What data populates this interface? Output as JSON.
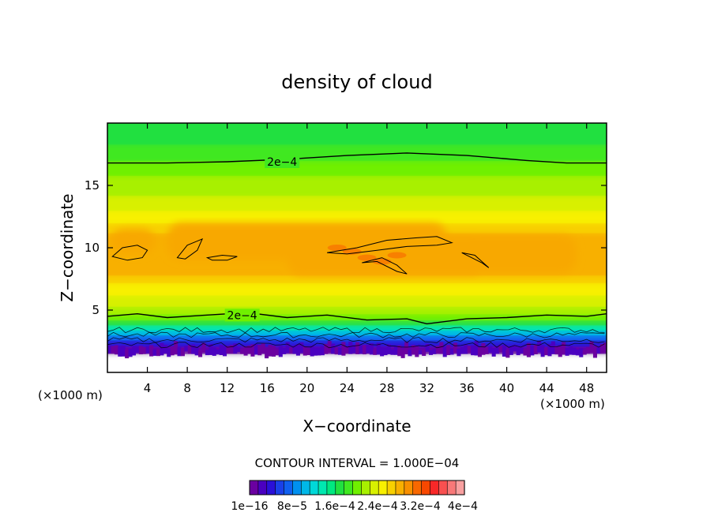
{
  "chart_data": {
    "type": "heatmap",
    "title": "density of cloud",
    "xlabel": "X−coordinate",
    "ylabel": "Z−coordinate",
    "x_unit_left": "(×1000 m)",
    "x_unit_right": "(×1000 m)",
    "xlim": [
      0,
      50
    ],
    "ylim": [
      0,
      20
    ],
    "x_ticks": [
      4,
      8,
      12,
      16,
      20,
      24,
      28,
      32,
      36,
      40,
      44,
      48
    ],
    "y_ticks": [
      5,
      10,
      15
    ],
    "contour_interval_text": "CONTOUR INTERVAL = 1.000E−04",
    "contour_labels": [
      "2e−4",
      "2e−4"
    ],
    "colorbar": {
      "labels": [
        "1e−16",
        "8e−5",
        "1.6e−4",
        "2.4e−4",
        "3.2e−4",
        "4e−4"
      ],
      "colors": [
        "#6a00a0",
        "#4a00c0",
        "#2a10d8",
        "#1a40e8",
        "#1060f0",
        "#0090f0",
        "#00b8e8",
        "#00d8d8",
        "#00e8b0",
        "#00e880",
        "#20e040",
        "#40e820",
        "#70f000",
        "#a8f000",
        "#d8f000",
        "#f8f000",
        "#f8d000",
        "#f8b000",
        "#f89000",
        "#f86800",
        "#f84800",
        "#f82828",
        "#f85050",
        "#f87878",
        "#f8a0a0"
      ]
    },
    "bands": [
      {
        "z_bottom": 0.0,
        "z_top": 1.5,
        "color": "#ffffff"
      },
      {
        "z_bottom": 1.5,
        "z_top": 2.1,
        "color": "#6a00a0"
      },
      {
        "z_bottom": 2.1,
        "z_top": 2.6,
        "color": "#2a10d8"
      },
      {
        "z_bottom": 2.6,
        "z_top": 3.0,
        "color": "#1060f0"
      },
      {
        "z_bottom": 3.0,
        "z_top": 3.4,
        "color": "#00b8e8"
      },
      {
        "z_bottom": 3.4,
        "z_top": 3.8,
        "color": "#00e8b0"
      },
      {
        "z_bottom": 3.8,
        "z_top": 4.2,
        "color": "#20e040"
      },
      {
        "z_bottom": 4.2,
        "z_top": 4.7,
        "color": "#70f000"
      },
      {
        "z_bottom": 4.7,
        "z_top": 5.3,
        "color": "#a8f000"
      },
      {
        "z_bottom": 5.3,
        "z_top": 6.2,
        "color": "#d8f000"
      },
      {
        "z_bottom": 6.2,
        "z_top": 7.2,
        "color": "#f8f000"
      },
      {
        "z_bottom": 7.2,
        "z_top": 7.8,
        "color": "#f8d000"
      },
      {
        "z_bottom": 7.8,
        "z_top": 11.2,
        "color": "#f8b000"
      },
      {
        "z_bottom": 11.2,
        "z_top": 12.0,
        "color": "#f8d000"
      },
      {
        "z_bottom": 12.0,
        "z_top": 13.0,
        "color": "#f8f000"
      },
      {
        "z_bottom": 13.0,
        "z_top": 14.2,
        "color": "#d8f000"
      },
      {
        "z_bottom": 14.2,
        "z_top": 15.8,
        "color": "#a8f000"
      },
      {
        "z_bottom": 15.8,
        "z_top": 17.0,
        "color": "#70f000"
      },
      {
        "z_bottom": 17.0,
        "z_top": 18.3,
        "color": "#40e820"
      },
      {
        "z_bottom": 18.3,
        "z_top": 20.0,
        "color": "#20e040"
      }
    ],
    "orange_core": [
      {
        "x": 0.3,
        "z": 9.5,
        "w": 4.5,
        "h": 2.0
      },
      {
        "x": 6,
        "z": 9.0,
        "w": 28,
        "h": 3.0
      },
      {
        "x": 18,
        "z": 7.8,
        "w": 20,
        "h": 3.2
      },
      {
        "x": 33,
        "z": 8.0,
        "w": 14,
        "h": 3.0
      }
    ],
    "red_spots": [
      {
        "x": 24.5,
        "z": 9.7
      },
      {
        "x": 26.0,
        "z": 9.2
      },
      {
        "x": 27.5,
        "z": 8.9
      },
      {
        "x": 29.0,
        "z": 9.4
      },
      {
        "x": 23.0,
        "z": 10.0
      }
    ],
    "upper_contour": [
      [
        0,
        16.8
      ],
      [
        6,
        16.8
      ],
      [
        12,
        16.9
      ],
      [
        18,
        17.1
      ],
      [
        24,
        17.4
      ],
      [
        30,
        17.6
      ],
      [
        36,
        17.4
      ],
      [
        42,
        17.0
      ],
      [
        46,
        16.8
      ],
      [
        50,
        16.8
      ]
    ],
    "lower_contour": [
      [
        0,
        4.5
      ],
      [
        3,
        4.7
      ],
      [
        6,
        4.4
      ],
      [
        10,
        4.6
      ],
      [
        14,
        4.8
      ],
      [
        18,
        4.4
      ],
      [
        22,
        4.6
      ],
      [
        26,
        4.2
      ],
      [
        30,
        4.3
      ],
      [
        32,
        3.9
      ],
      [
        36,
        4.3
      ],
      [
        40,
        4.4
      ],
      [
        44,
        4.6
      ],
      [
        48,
        4.5
      ],
      [
        50,
        4.7
      ]
    ],
    "cloud_contours": [
      [
        [
          0.5,
          9.3
        ],
        [
          1.5,
          10.0
        ],
        [
          3,
          10.2
        ],
        [
          4,
          9.8
        ],
        [
          3.5,
          9.2
        ],
        [
          2,
          9.0
        ],
        [
          0.5,
          9.3
        ]
      ],
      [
        [
          7,
          9.2
        ],
        [
          8,
          10.2
        ],
        [
          9.5,
          10.7
        ],
        [
          9,
          9.8
        ],
        [
          7.8,
          9.1
        ],
        [
          7,
          9.2
        ]
      ],
      [
        [
          10,
          9.2
        ],
        [
          11.5,
          9.4
        ],
        [
          13,
          9.3
        ],
        [
          12,
          9.0
        ],
        [
          10.5,
          9.0
        ],
        [
          10,
          9.2
        ]
      ],
      [
        [
          22,
          9.6
        ],
        [
          25,
          10.0
        ],
        [
          28,
          10.6
        ],
        [
          31,
          10.8
        ],
        [
          33,
          10.9
        ],
        [
          34.5,
          10.4
        ],
        [
          33,
          10.2
        ],
        [
          30,
          10.1
        ],
        [
          27,
          9.8
        ],
        [
          24,
          9.5
        ],
        [
          22,
          9.6
        ]
      ],
      [
        [
          25.5,
          8.8
        ],
        [
          27,
          8.9
        ],
        [
          29,
          8.1
        ],
        [
          30,
          7.9
        ],
        [
          29,
          8.6
        ],
        [
          27.5,
          9.2
        ],
        [
          25.5,
          8.8
        ]
      ],
      [
        [
          35.5,
          9.6
        ],
        [
          37.5,
          8.8
        ],
        [
          38.2,
          8.4
        ],
        [
          36.8,
          9.4
        ],
        [
          35.5,
          9.6
        ]
      ]
    ],
    "noise_contours_z": [
      2.2,
      2.6,
      3.0,
      3.4
    ]
  }
}
